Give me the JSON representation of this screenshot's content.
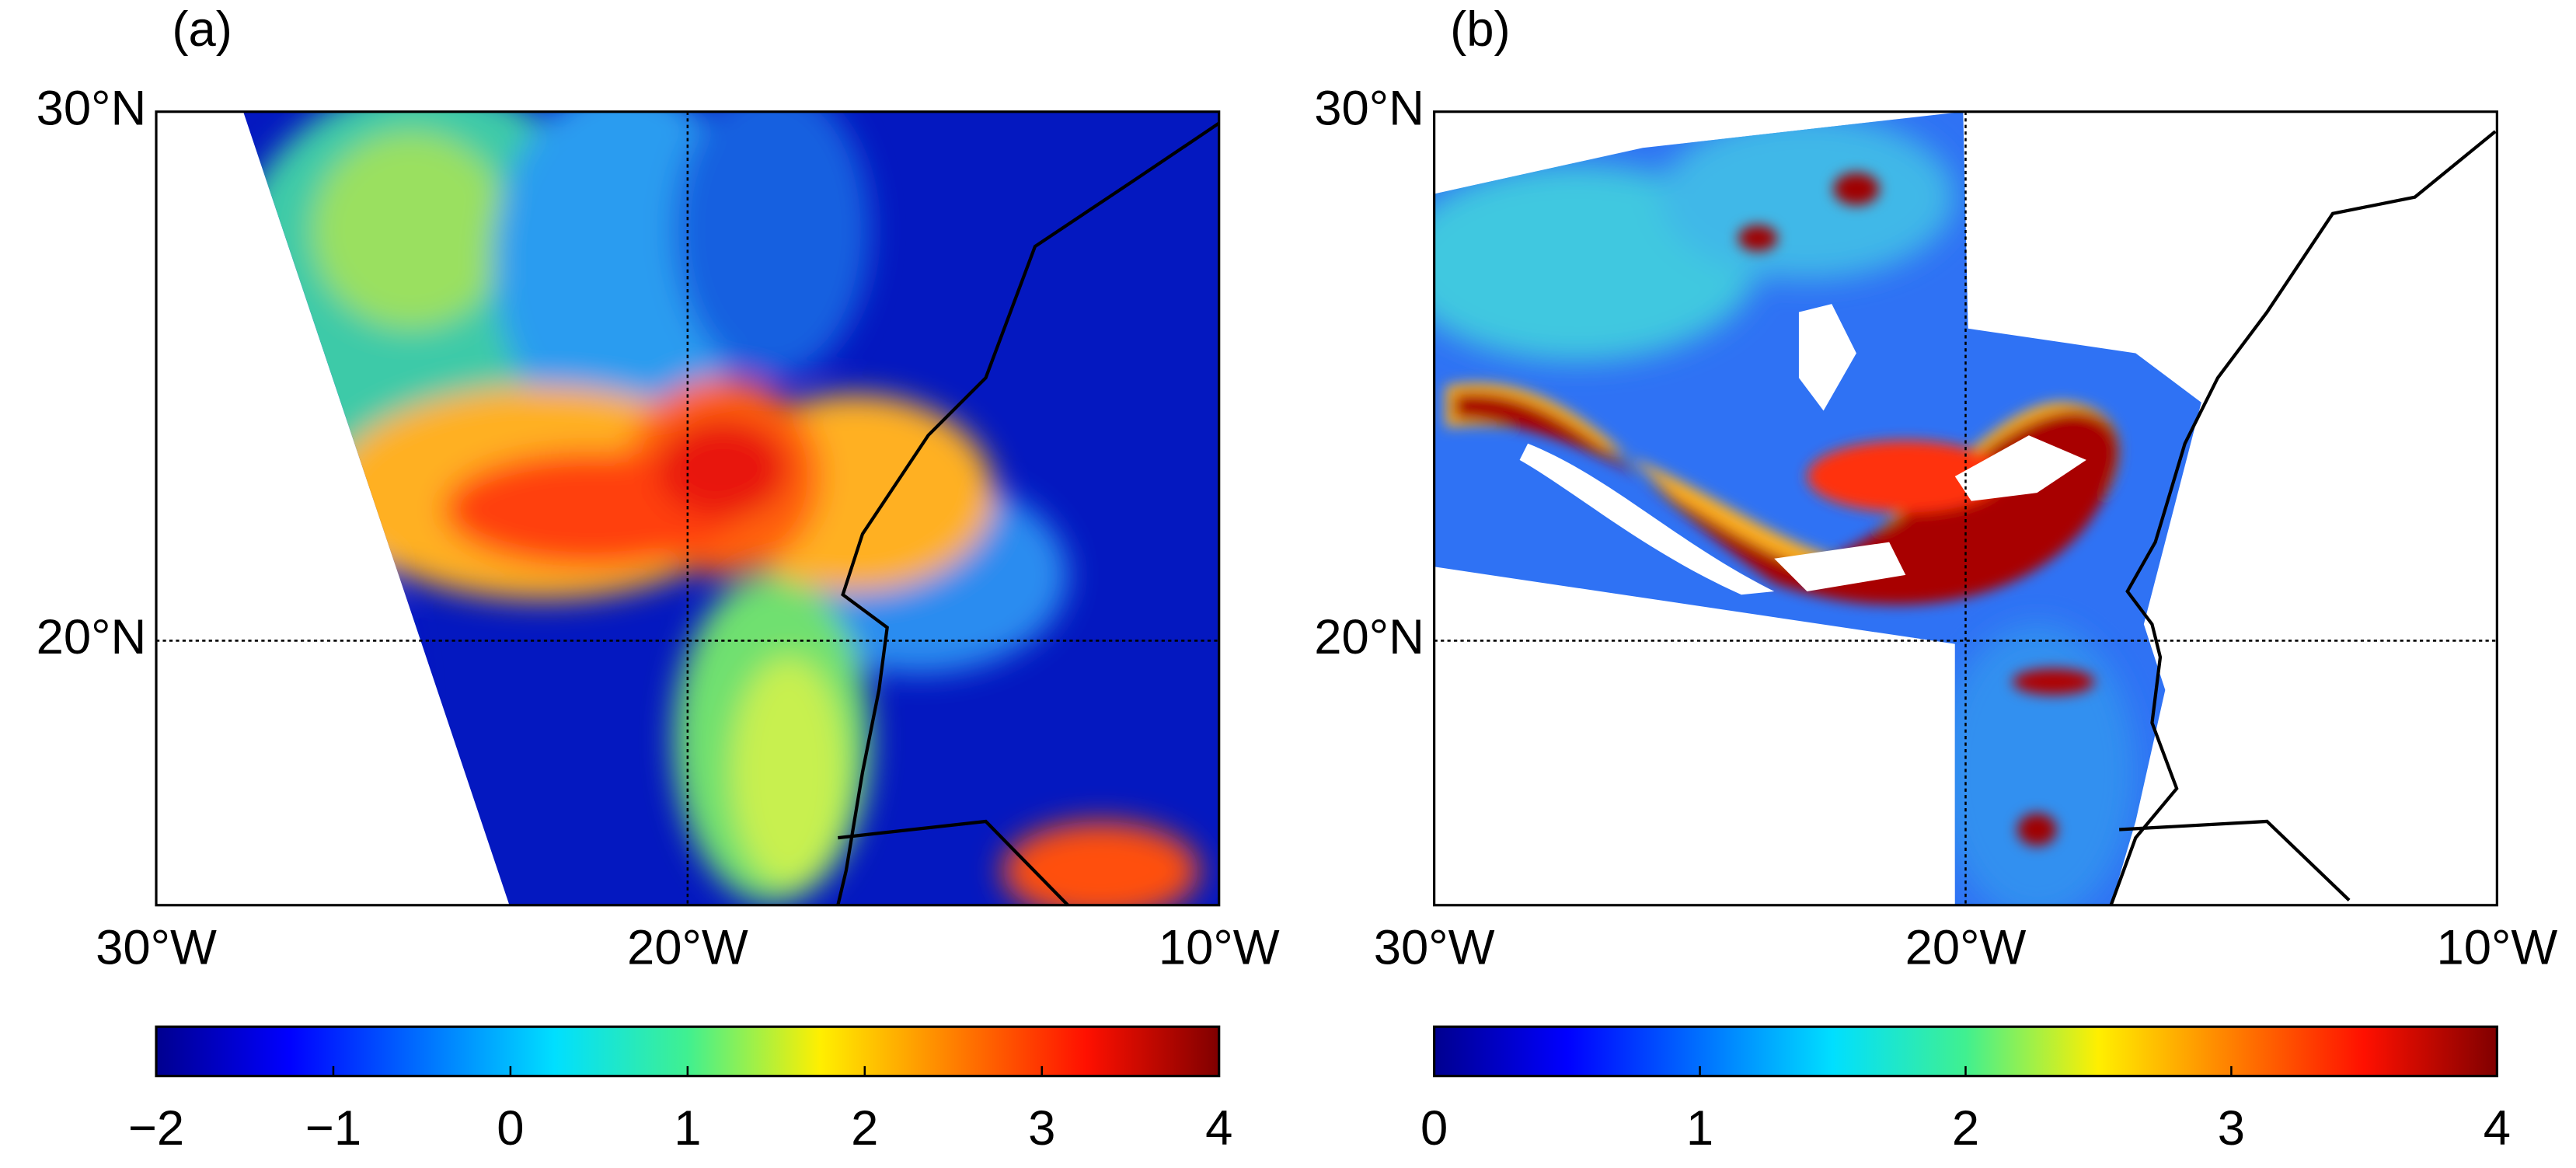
{
  "panels": [
    {
      "label": "(a)",
      "lat_lim": [
        15,
        30
      ],
      "lon_lim": [
        -30,
        -10
      ],
      "lat_ticks": [
        {
          "value": 30,
          "label": "30°N"
        },
        {
          "value": 20,
          "label": "20°N"
        }
      ],
      "lon_ticks": [
        {
          "value": -30,
          "label": "30°W"
        },
        {
          "value": -20,
          "label": "20°W"
        },
        {
          "value": -10,
          "label": "10°W"
        }
      ],
      "colorbar": {
        "lim": [
          -2,
          4
        ],
        "ticks": [
          {
            "value": -2,
            "label": "−2"
          },
          {
            "value": -1,
            "label": "−1"
          },
          0,
          1,
          2,
          3,
          4
        ]
      }
    },
    {
      "label": "(b)",
      "lat_lim": [
        15,
        30
      ],
      "lon_lim": [
        -30,
        -10
      ],
      "lat_ticks": [
        {
          "value": 30,
          "label": "30°N"
        },
        {
          "value": 20,
          "label": "20°N"
        }
      ],
      "lon_ticks": [
        {
          "value": -30,
          "label": "30°W"
        },
        {
          "value": -20,
          "label": "20°W"
        },
        {
          "value": -10,
          "label": "10°W"
        }
      ],
      "colorbar": {
        "lim": [
          0,
          4
        ],
        "ticks": [
          0,
          1,
          2,
          3,
          4
        ]
      }
    }
  ]
}
